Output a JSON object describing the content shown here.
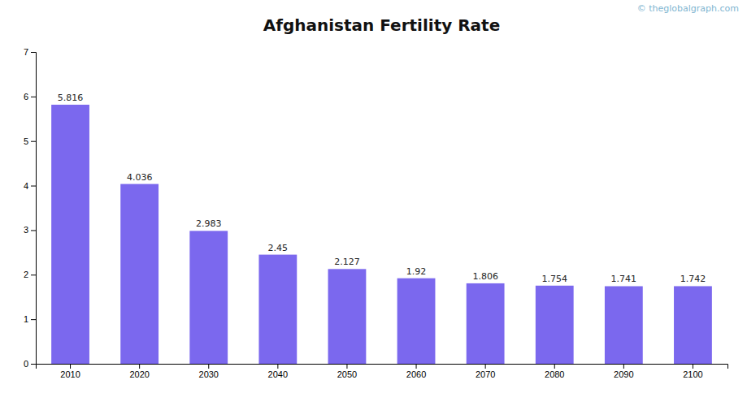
{
  "chart_data": {
    "type": "bar",
    "title": "Afghanistan Fertility Rate",
    "categories": [
      "2010",
      "2020",
      "2030",
      "2040",
      "2050",
      "2060",
      "2070",
      "2080",
      "2090",
      "2100"
    ],
    "values": [
      5.816,
      4.036,
      2.983,
      2.45,
      2.127,
      1.92,
      1.806,
      1.754,
      1.741,
      1.742
    ],
    "color": "#7B68EE",
    "ylim": [
      0,
      7
    ],
    "yticks": [
      0,
      1,
      2,
      3,
      4,
      5,
      6,
      7
    ],
    "grid": false,
    "data_labels": true,
    "annotations": [
      "© theglobalgraph.com"
    ]
  }
}
